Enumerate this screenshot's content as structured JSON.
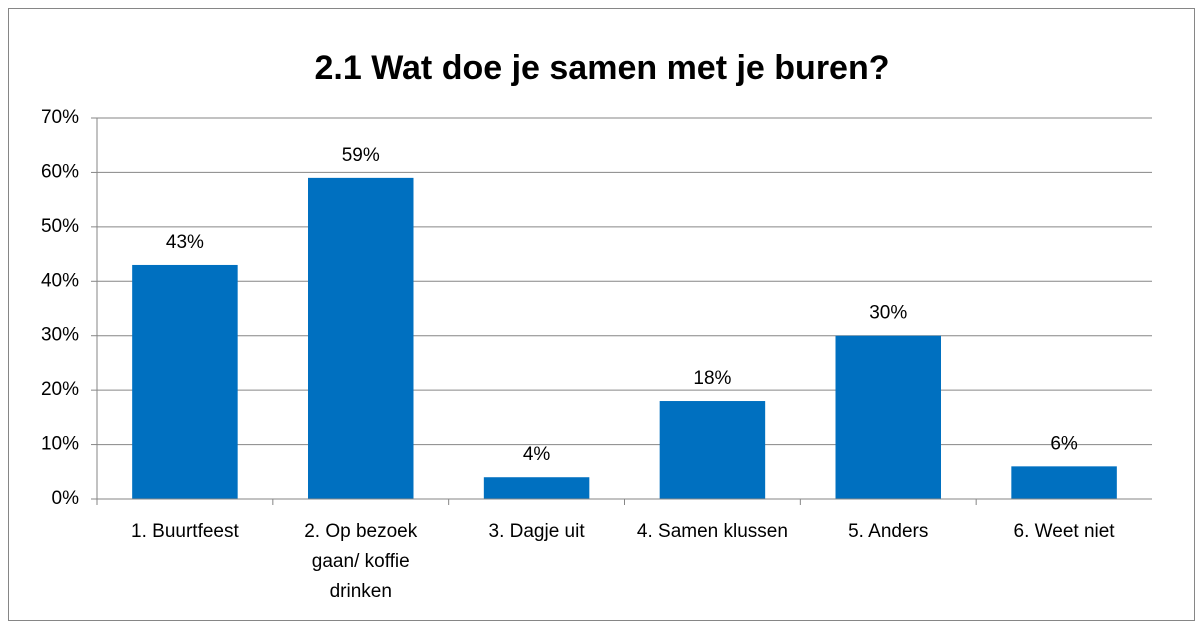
{
  "chart_data": {
    "type": "bar",
    "title": "2.1  Wat doe je samen met je buren?",
    "categories": [
      "1. Buurtfeest",
      "2. Op bezoek gaan/ koffie drinken",
      "3. Dagje uit",
      "4. Samen klussen",
      "5. Anders",
      "6. Weet niet"
    ],
    "values": [
      43,
      59,
      4,
      18,
      30,
      6
    ],
    "value_labels": [
      "43%",
      "59%",
      "4%",
      "18%",
      "30%",
      "6%"
    ],
    "color": "#0070c0",
    "ylim": [
      0,
      70
    ],
    "yticks": [
      {
        "value": 0,
        "label": "0%"
      },
      {
        "value": 10,
        "label": "10%"
      },
      {
        "value": 20,
        "label": "20%"
      },
      {
        "value": 30,
        "label": "30%"
      },
      {
        "value": 40,
        "label": "40%"
      },
      {
        "value": 50,
        "label": "50%"
      },
      {
        "value": 60,
        "label": "60%"
      },
      {
        "value": 70,
        "label": "70%"
      }
    ],
    "grid": true
  }
}
